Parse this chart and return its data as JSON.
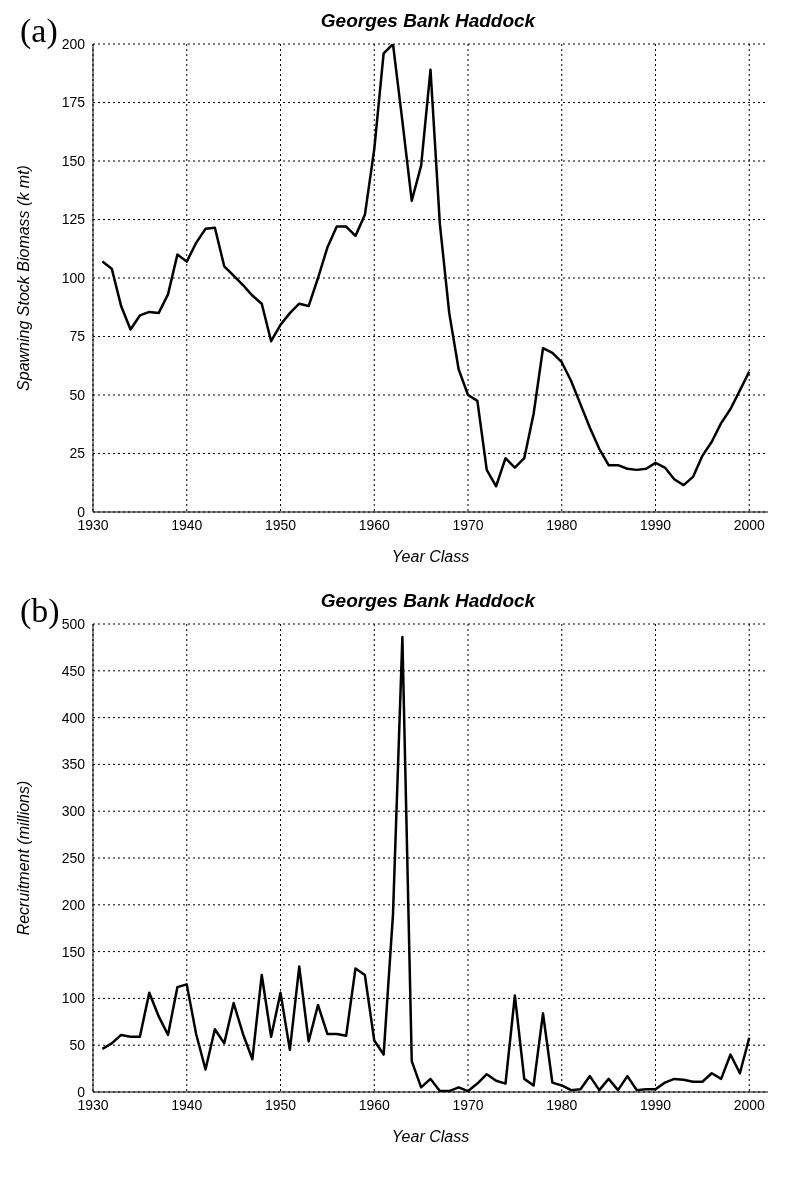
{
  "chart_data": [
    {
      "type": "line",
      "title": "Georges Bank Haddock",
      "annotations": [
        "(a)"
      ],
      "xlabel": "Year Class",
      "ylabel": "Spawning Stock Biomass (k mt)",
      "x": [
        1931,
        1932,
        1933,
        1934,
        1935,
        1936,
        1937,
        1938,
        1939,
        1940,
        1941,
        1942,
        1943,
        1944,
        1945,
        1946,
        1947,
        1948,
        1949,
        1950,
        1951,
        1952,
        1953,
        1954,
        1955,
        1956,
        1957,
        1958,
        1959,
        1960,
        1961,
        1962,
        1963,
        1964,
        1965,
        1966,
        1967,
        1968,
        1969,
        1970,
        1971,
        1972,
        1973,
        1974,
        1975,
        1976,
        1977,
        1978,
        1979,
        1980,
        1981,
        1982,
        1983,
        1984,
        1985,
        1986,
        1987,
        1988,
        1989,
        1990,
        1991,
        1992,
        1993,
        1994,
        1995,
        1996,
        1997,
        1998,
        1999,
        2000
      ],
      "series": [
        {
          "color": "#000000",
          "values": [
            107,
            104,
            88,
            78,
            84,
            85.5,
            85,
            93,
            110,
            107,
            115,
            121,
            121.5,
            105,
            101,
            97,
            92.5,
            89,
            73,
            80,
            85,
            89,
            88,
            100,
            113,
            122,
            122,
            118,
            127,
            155,
            196,
            200,
            167,
            133,
            148,
            189,
            123,
            85,
            61,
            50,
            47.5,
            18,
            11,
            23,
            19,
            23,
            42,
            70,
            68,
            64,
            56,
            46,
            36,
            27,
            20,
            20,
            18.5,
            18,
            18.5,
            21,
            19,
            14,
            11.5,
            15,
            24,
            30,
            38,
            44,
            52,
            60
          ]
        }
      ],
      "xlim": [
        1930,
        2002
      ],
      "xticks": [
        1930,
        1940,
        1950,
        1960,
        1970,
        1980,
        1990,
        2000
      ],
      "ylim": [
        0,
        200
      ],
      "yticks": [
        0,
        25,
        50,
        75,
        100,
        125,
        150,
        175,
        200
      ],
      "grid": true,
      "line_style": "solid",
      "marker": "none"
    },
    {
      "type": "line",
      "title": "Georges Bank Haddock",
      "annotations": [
        "(b)"
      ],
      "xlabel": "Year Class",
      "ylabel": "Recruitment (millions)",
      "x": [
        1931,
        1932,
        1933,
        1934,
        1935,
        1936,
        1937,
        1938,
        1939,
        1940,
        1941,
        1942,
        1943,
        1944,
        1945,
        1946,
        1947,
        1948,
        1949,
        1950,
        1951,
        1952,
        1953,
        1954,
        1955,
        1956,
        1957,
        1958,
        1959,
        1960,
        1961,
        1962,
        1963,
        1964,
        1965,
        1966,
        1967,
        1968,
        1969,
        1970,
        1971,
        1972,
        1973,
        1974,
        1975,
        1976,
        1977,
        1978,
        1979,
        1980,
        1981,
        1982,
        1983,
        1984,
        1985,
        1986,
        1987,
        1988,
        1989,
        1990,
        1991,
        1992,
        1993,
        1994,
        1995,
        1996,
        1997,
        1998,
        1999,
        2000
      ],
      "series": [
        {
          "color": "#000000",
          "values": [
            46,
            52,
            61,
            59,
            59,
            106,
            81,
            61,
            112,
            115,
            62,
            24,
            67,
            52,
            95,
            62,
            35,
            125,
            59,
            106,
            45,
            134,
            54,
            93,
            62,
            62,
            60,
            132,
            125,
            55,
            40,
            190,
            486,
            33,
            5,
            14,
            1,
            1,
            5,
            1,
            9,
            19,
            12,
            9,
            103,
            14,
            7,
            84,
            10,
            7,
            2,
            3,
            17,
            2,
            14,
            2,
            17,
            2,
            3,
            3,
            10,
            14,
            13,
            11,
            11,
            20,
            14,
            40,
            20,
            58
          ]
        }
      ],
      "xlim": [
        1930,
        2002
      ],
      "xticks": [
        1930,
        1940,
        1950,
        1960,
        1970,
        1980,
        1990,
        2000
      ],
      "ylim": [
        0,
        500
      ],
      "yticks": [
        0,
        50,
        100,
        150,
        200,
        250,
        300,
        350,
        400,
        450,
        500
      ],
      "grid": true,
      "line_style": "solid",
      "marker": "none"
    }
  ]
}
